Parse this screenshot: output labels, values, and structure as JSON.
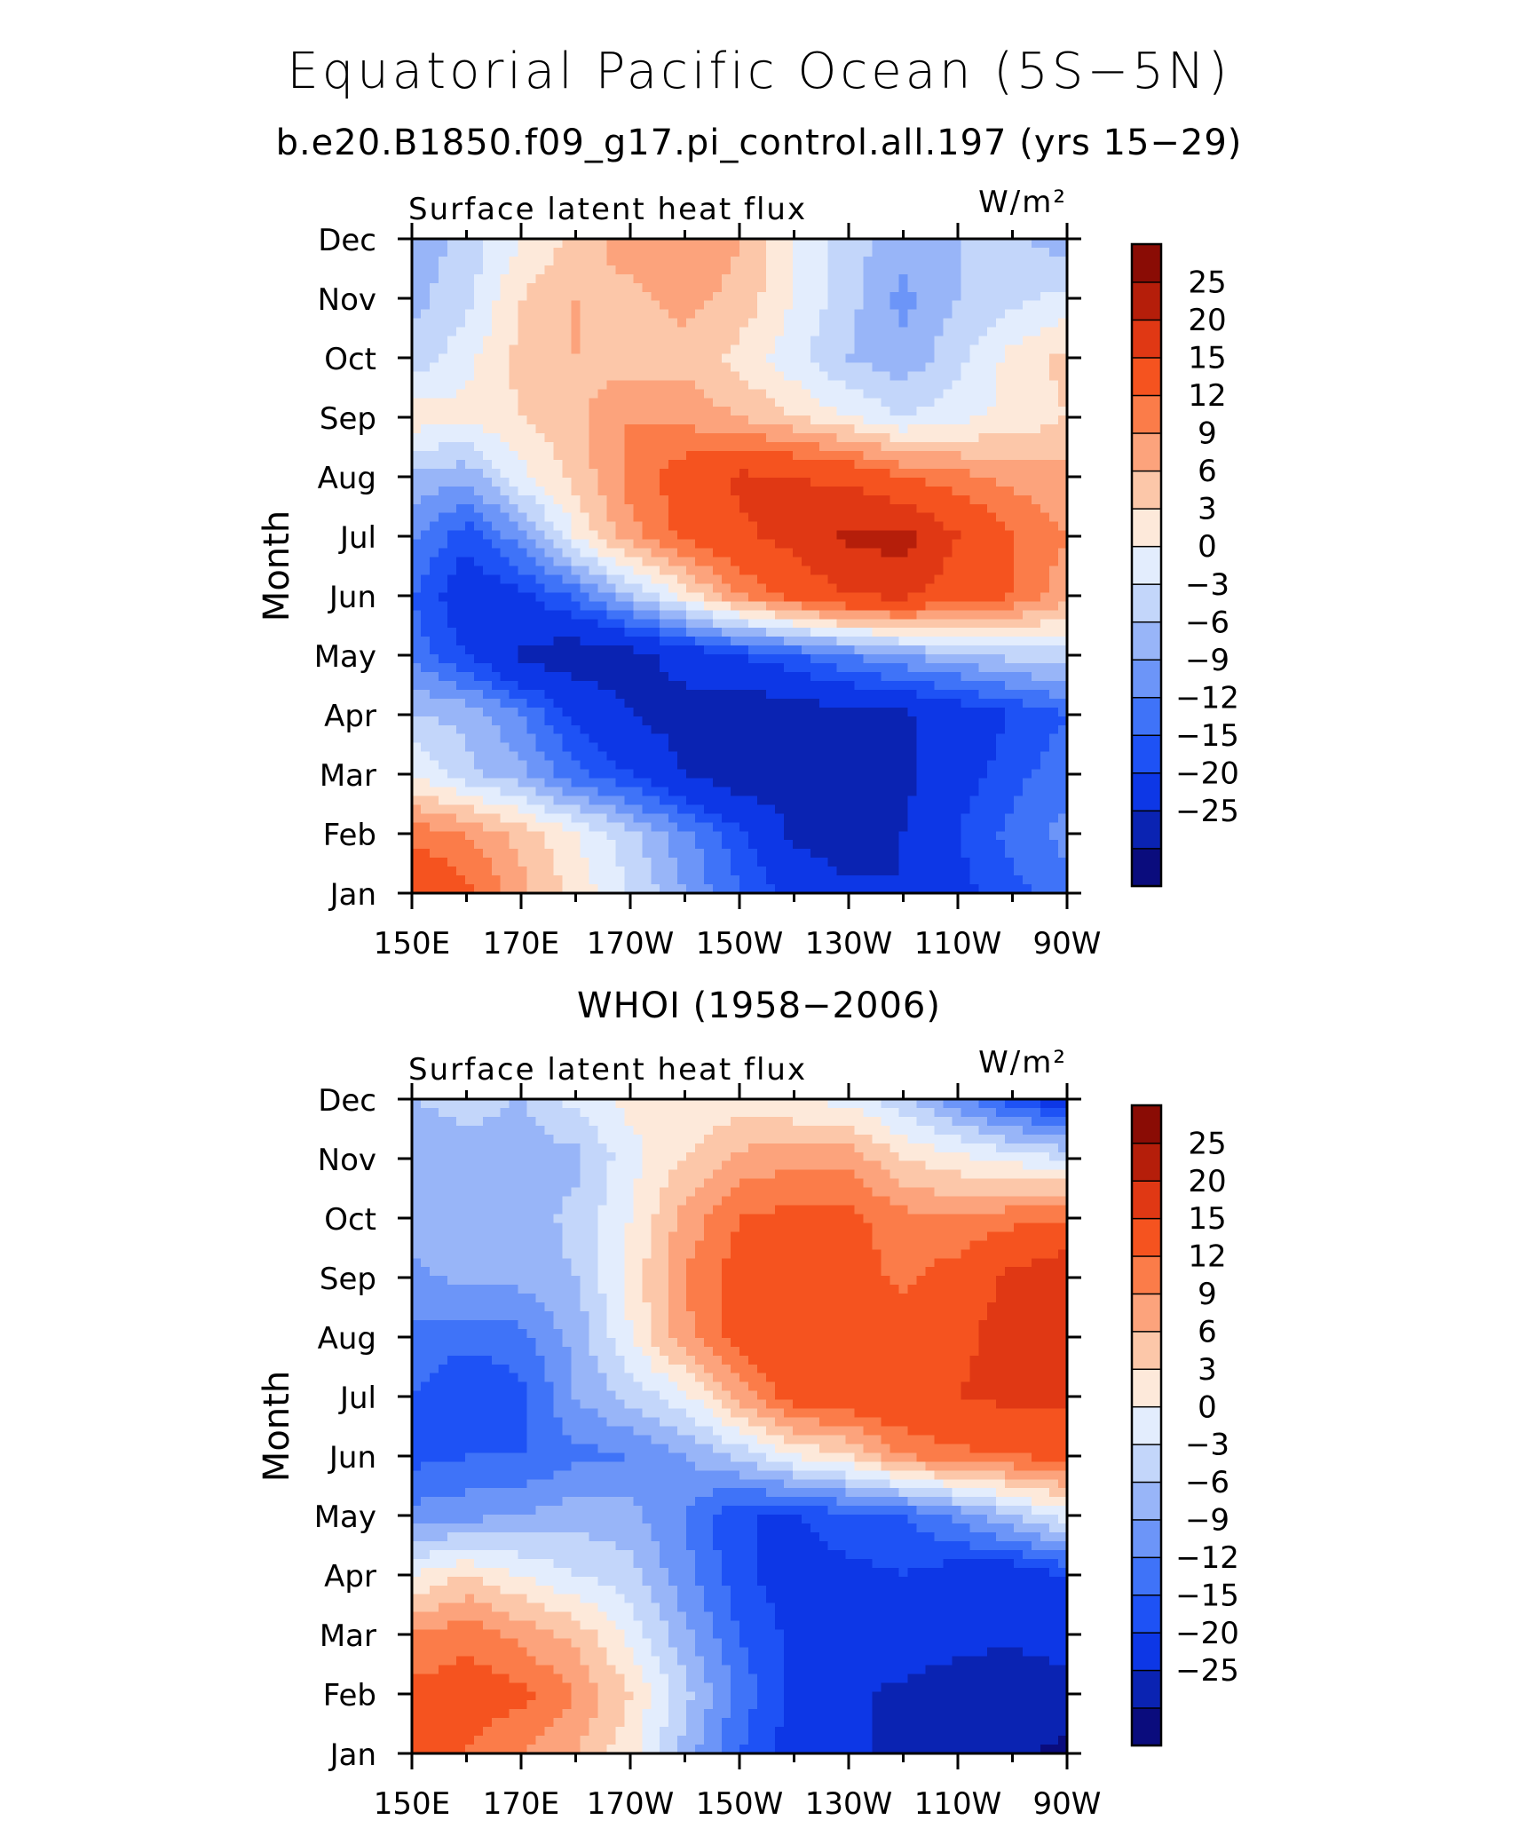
{
  "title": "Equatorial Pacific Ocean (5S−5N)",
  "panel_titles": [
    "b.e20.B1850.f09_g17.pi_control.all.197 (yrs 15−29)",
    "WHOI (1958−2006)"
  ],
  "colorbar": {
    "labels": [
      "25",
      "20",
      "15",
      "12",
      "9",
      "6",
      "3",
      "0",
      "−3",
      "−6",
      "−9",
      "−12",
      "−15",
      "−20",
      "−25"
    ],
    "levels": [
      -25,
      -20,
      -15,
      -12,
      -9,
      -6,
      -3,
      0,
      3,
      6,
      9,
      12,
      15,
      20,
      25
    ],
    "colors": [
      "#0a0c7d",
      "#0a23b2",
      "#0d37e6",
      "#1e52f5",
      "#3f73f8",
      "#6c95f8",
      "#98b5f8",
      "#c3d6fa",
      "#e3edfd",
      "#fde9da",
      "#fcc7a9",
      "#fca37c",
      "#fb7c49",
      "#f5531f",
      "#e03814",
      "#b51e0a",
      "#8a0c05"
    ]
  },
  "chart_data": [
    {
      "type": "heatmap",
      "left_label": "Surface latent heat flux",
      "right_label": "W/m²",
      "ylabel": "Month",
      "x_ticks": [
        "150E",
        "170E",
        "170W",
        "150W",
        "130W",
        "110W",
        "90W"
      ],
      "x": [
        150,
        160,
        170,
        180,
        190,
        200,
        210,
        220,
        230,
        240,
        250,
        260,
        270
      ],
      "y_ticks": [
        "Jan",
        "Feb",
        "Mar",
        "Apr",
        "May",
        "Jun",
        "Jul",
        "Aug",
        "Sep",
        "Oct",
        "Nov",
        "Dec"
      ],
      "z": [
        [
          20,
          16,
          10,
          5,
          0,
          -6,
          -12,
          -16,
          -19,
          -20,
          -16,
          -13,
          -10
        ],
        [
          14,
          12,
          8,
          3,
          -2,
          -8,
          -14,
          -21,
          -23,
          -20,
          -15,
          -11,
          -8
        ],
        [
          3,
          -2,
          -5,
          -11,
          -15,
          -20,
          -23,
          -22,
          -21,
          -21,
          -17,
          -13,
          -10
        ],
        [
          -3,
          -4,
          -9,
          -16,
          -20,
          -22,
          -24,
          -23,
          -21,
          -21,
          -18,
          -15,
          -12
        ],
        [
          -10,
          -15,
          -21,
          -23,
          -22,
          -18,
          -15,
          -12,
          -9,
          -6,
          -4,
          -2,
          -1
        ],
        [
          -12,
          -18,
          -16,
          -11,
          -3,
          4,
          12,
          16,
          20,
          21,
          17,
          15,
          10
        ],
        [
          -8,
          -14,
          -7,
          3,
          11,
          16,
          19,
          22,
          26,
          27,
          20,
          15,
          12
        ],
        [
          -4,
          -5,
          2,
          7,
          13,
          17,
          21,
          20,
          19,
          15,
          13,
          11,
          10
        ],
        [
          5,
          4,
          6,
          8,
          12,
          11,
          9,
          6,
          3,
          0,
          2,
          4,
          6
        ],
        [
          -2,
          2,
          7,
          9,
          7,
          8,
          5,
          1,
          -3,
          -5,
          -1,
          4,
          7
        ],
        [
          -4,
          -1,
          6,
          9,
          8,
          10,
          8,
          3,
          -2,
          -7,
          -3,
          -1,
          1
        ],
        [
          -5,
          -2,
          3,
          7,
          11,
          12,
          9,
          3,
          -2,
          -4,
          -3,
          -2,
          -5
        ]
      ]
    },
    {
      "type": "heatmap",
      "left_label": "Surface latent heat flux",
      "right_label": "W/m²",
      "ylabel": "Month",
      "x_ticks": [
        "150E",
        "170E",
        "170W",
        "150W",
        "130W",
        "110W",
        "90W"
      ],
      "x": [
        150,
        160,
        170,
        180,
        190,
        200,
        210,
        220,
        230,
        240,
        250,
        260,
        270
      ],
      "y_ticks": [
        "Jan",
        "Feb",
        "Mar",
        "Apr",
        "May",
        "Jun",
        "Jul",
        "Aug",
        "Sep",
        "Oct",
        "Nov",
        "Dec"
      ],
      "z": [
        [
          16,
          15,
          12,
          9,
          4,
          -4,
          -12,
          -17,
          -19,
          -21,
          -22,
          -24,
          -26
        ],
        [
          16,
          17,
          16,
          12,
          6,
          -2,
          -10,
          -16,
          -19,
          -21,
          -23,
          -24,
          -22
        ],
        [
          12,
          14,
          11,
          8,
          2,
          -5,
          -12,
          -16,
          -18,
          -17,
          -18,
          -19,
          -17
        ],
        [
          3,
          6,
          3,
          0,
          -2,
          -8,
          -14,
          -17,
          -16,
          -15,
          -17,
          -18,
          -15
        ],
        [
          -8,
          -7,
          -6,
          -4,
          -5,
          -9,
          -15,
          -15,
          -13,
          -12,
          -8,
          -3,
          2
        ],
        [
          -13,
          -12,
          -12,
          -10,
          -9,
          -6,
          -2,
          3,
          6,
          12,
          14,
          15,
          16
        ],
        [
          -12,
          -15,
          -13,
          -6,
          -2,
          2,
          10,
          17,
          18,
          19,
          20,
          21,
          21
        ],
        [
          -10,
          -11,
          -10,
          -5,
          3,
          11,
          17,
          20,
          20,
          17,
          19,
          22,
          24
        ],
        [
          -7,
          -5,
          -5,
          -3,
          4,
          12,
          17,
          18,
          17,
          14,
          17,
          21,
          24
        ],
        [
          -4,
          -3,
          -5,
          -2,
          3,
          10,
          15,
          16,
          16,
          13,
          12,
          14,
          15
        ],
        [
          -5,
          -4,
          -5,
          -4,
          2,
          6,
          10,
          11,
          11,
          6,
          4,
          2,
          0
        ],
        [
          -3,
          -2,
          -3,
          1,
          4,
          3,
          4,
          3,
          2,
          -2,
          -8,
          -14,
          -18
        ]
      ]
    }
  ]
}
